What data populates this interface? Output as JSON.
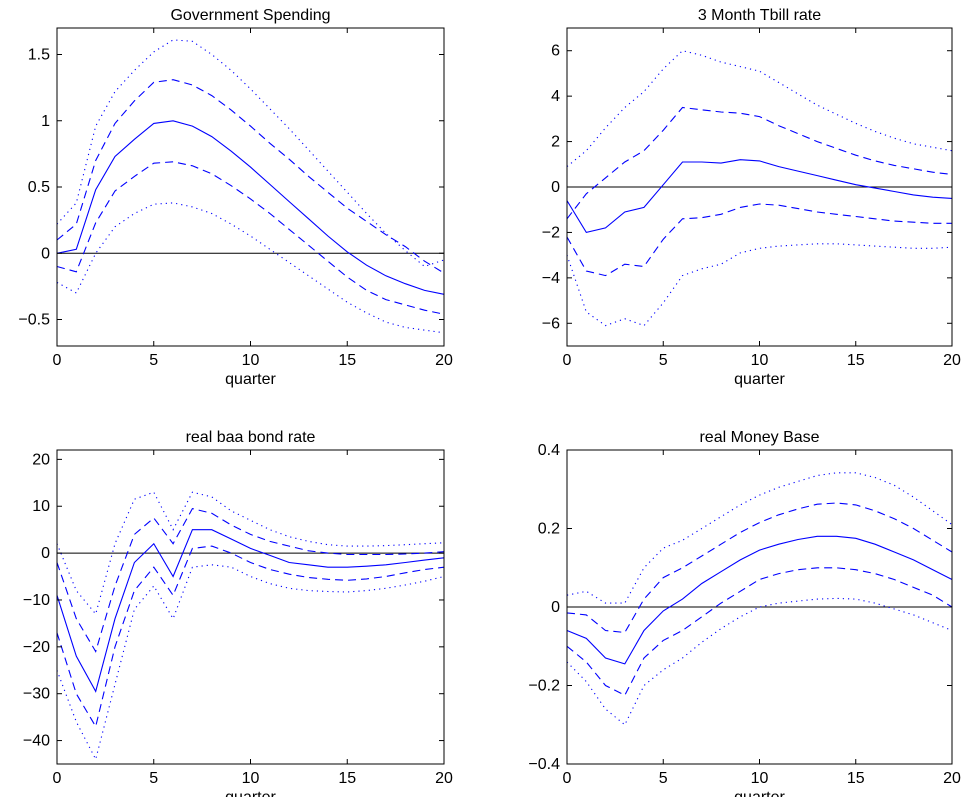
{
  "chart_data": [
    {
      "type": "line",
      "title": "Government Spending",
      "xlabel": "quarter",
      "ylabel": "",
      "xlim": [
        0,
        20
      ],
      "ylim": [
        -0.7,
        1.7
      ],
      "xticks": [
        "0",
        "5",
        "10",
        "15",
        "20"
      ],
      "yticks": [
        "−0.5",
        "0",
        "0.5",
        "1",
        "1.5"
      ],
      "ytick_values": [
        -0.5,
        0,
        0.5,
        1,
        1.5
      ],
      "zero_line": true,
      "x": [
        0,
        1,
        2,
        3,
        4,
        5,
        6,
        7,
        8,
        9,
        10,
        11,
        12,
        13,
        14,
        15,
        16,
        17,
        18,
        19,
        20
      ],
      "series": [
        {
          "style": "solid",
          "values": [
            0,
            0.03,
            0.48,
            0.73,
            0.86,
            0.98,
            1.0,
            0.96,
            0.88,
            0.77,
            0.65,
            0.52,
            0.39,
            0.26,
            0.13,
            0.01,
            -0.09,
            -0.17,
            -0.23,
            -0.28,
            -0.31
          ]
        },
        {
          "style": "dashed",
          "values": [
            0.1,
            0.22,
            0.7,
            0.98,
            1.15,
            1.29,
            1.31,
            1.27,
            1.19,
            1.08,
            0.96,
            0.83,
            0.71,
            0.58,
            0.46,
            0.34,
            0.24,
            0.14,
            0.05,
            -0.06,
            -0.15
          ]
        },
        {
          "style": "dashed",
          "values": [
            -0.1,
            -0.14,
            0.23,
            0.47,
            0.58,
            0.68,
            0.69,
            0.66,
            0.6,
            0.51,
            0.41,
            0.3,
            0.18,
            0.06,
            -0.06,
            -0.18,
            -0.28,
            -0.35,
            -0.39,
            -0.43,
            -0.46
          ]
        },
        {
          "style": "dotted",
          "values": [
            0.22,
            0.38,
            0.96,
            1.22,
            1.38,
            1.52,
            1.61,
            1.6,
            1.5,
            1.38,
            1.24,
            1.09,
            0.94,
            0.78,
            0.62,
            0.46,
            0.3,
            0.15,
            0.02,
            -0.1,
            -0.05
          ]
        },
        {
          "style": "dotted",
          "values": [
            -0.22,
            -0.3,
            0.0,
            0.2,
            0.3,
            0.37,
            0.38,
            0.35,
            0.3,
            0.22,
            0.13,
            0.03,
            -0.07,
            -0.17,
            -0.27,
            -0.37,
            -0.45,
            -0.52,
            -0.56,
            -0.58,
            -0.6
          ]
        }
      ]
    },
    {
      "type": "line",
      "title": "3 Month Tbill rate",
      "xlabel": "quarter",
      "ylabel": "",
      "xlim": [
        0,
        20
      ],
      "ylim": [
        -7,
        7
      ],
      "xticks": [
        "0",
        "5",
        "10",
        "15",
        "20"
      ],
      "yticks": [
        "−6",
        "−4",
        "−2",
        "0",
        "2",
        "4",
        "6"
      ],
      "ytick_values": [
        -6,
        -4,
        -2,
        0,
        2,
        4,
        6
      ],
      "zero_line": true,
      "x": [
        0,
        1,
        2,
        3,
        4,
        5,
        6,
        7,
        8,
        9,
        10,
        11,
        12,
        13,
        14,
        15,
        16,
        17,
        18,
        19,
        20
      ],
      "series": [
        {
          "style": "solid",
          "values": [
            -0.6,
            -2.0,
            -1.8,
            -1.1,
            -0.9,
            0.1,
            1.1,
            1.1,
            1.05,
            1.2,
            1.15,
            0.9,
            0.7,
            0.5,
            0.3,
            0.1,
            -0.05,
            -0.2,
            -0.35,
            -0.45,
            -0.5
          ]
        },
        {
          "style": "dashed",
          "values": [
            -1.4,
            -0.3,
            0.4,
            1.1,
            1.6,
            2.5,
            3.5,
            3.4,
            3.3,
            3.25,
            3.1,
            2.7,
            2.35,
            2.0,
            1.7,
            1.4,
            1.15,
            0.95,
            0.8,
            0.65,
            0.55
          ]
        },
        {
          "style": "dashed",
          "values": [
            -2.2,
            -3.7,
            -3.9,
            -3.4,
            -3.5,
            -2.3,
            -1.4,
            -1.35,
            -1.2,
            -0.9,
            -0.75,
            -0.8,
            -0.95,
            -1.1,
            -1.2,
            -1.3,
            -1.4,
            -1.5,
            -1.55,
            -1.6,
            -1.6
          ]
        },
        {
          "style": "dotted",
          "values": [
            0.9,
            1.6,
            2.6,
            3.5,
            4.2,
            5.2,
            6.0,
            5.8,
            5.5,
            5.3,
            5.1,
            4.6,
            4.1,
            3.6,
            3.2,
            2.8,
            2.45,
            2.15,
            1.9,
            1.75,
            1.6
          ]
        },
        {
          "style": "dotted",
          "values": [
            -3.0,
            -5.5,
            -6.1,
            -5.8,
            -6.1,
            -5.1,
            -3.9,
            -3.6,
            -3.4,
            -2.9,
            -2.7,
            -2.6,
            -2.55,
            -2.5,
            -2.5,
            -2.55,
            -2.6,
            -2.65,
            -2.7,
            -2.7,
            -2.65
          ]
        }
      ]
    },
    {
      "type": "line",
      "title": "real baa bond rate",
      "xlabel": "quarter",
      "ylabel": "",
      "xlim": [
        0,
        20
      ],
      "ylim": [
        -45,
        22
      ],
      "xticks": [
        "0",
        "5",
        "10",
        "15",
        "20"
      ],
      "yticks": [
        "−40",
        "−30",
        "−20",
        "−10",
        "0",
        "10",
        "20"
      ],
      "ytick_values": [
        -40,
        -30,
        -20,
        -10,
        0,
        10,
        20
      ],
      "zero_line": true,
      "x": [
        0,
        1,
        2,
        3,
        4,
        5,
        6,
        7,
        8,
        9,
        10,
        11,
        12,
        13,
        14,
        15,
        16,
        17,
        18,
        19,
        20
      ],
      "series": [
        {
          "style": "solid",
          "values": [
            -9,
            -22,
            -29.5,
            -14,
            -2,
            2,
            -5,
            5,
            5,
            3,
            1,
            -0.5,
            -2,
            -2.5,
            -3,
            -3,
            -2.8,
            -2.5,
            -2,
            -1.5,
            -1
          ]
        },
        {
          "style": "dashed",
          "values": [
            -2,
            -14,
            -21,
            -7,
            4,
            7.5,
            2,
            9.5,
            8.5,
            6,
            4,
            2.5,
            1.5,
            0.5,
            0,
            -0.3,
            -0.3,
            -0.3,
            -0.2,
            0,
            0.3
          ]
        },
        {
          "style": "dashed",
          "values": [
            -17,
            -30,
            -37,
            -20,
            -8,
            -3,
            -9,
            1,
            1.5,
            0,
            -2,
            -3.5,
            -4.5,
            -5.2,
            -5.6,
            -5.8,
            -5.5,
            -5,
            -4.2,
            -3.5,
            -3
          ]
        },
        {
          "style": "dotted",
          "values": [
            2,
            -8,
            -13,
            2,
            11.5,
            13,
            5,
            13,
            12,
            9,
            7,
            5,
            3.5,
            2.5,
            1.8,
            1.5,
            1.5,
            1.6,
            1.8,
            2,
            2.2
          ]
        },
        {
          "style": "dotted",
          "values": [
            -25,
            -36,
            -44,
            -28,
            -12,
            -7,
            -14,
            -3,
            -2.5,
            -3,
            -5,
            -6.5,
            -7.5,
            -8,
            -8.2,
            -8.3,
            -8,
            -7.5,
            -6.8,
            -6,
            -5
          ]
        }
      ]
    },
    {
      "type": "line",
      "title": "real Money Base",
      "xlabel": "quarter",
      "ylabel": "",
      "xlim": [
        0,
        20
      ],
      "ylim": [
        -0.4,
        0.4
      ],
      "xticks": [
        "0",
        "5",
        "10",
        "15",
        "20"
      ],
      "yticks": [
        "−0.4",
        "−0.2",
        "0",
        "0.2",
        "0.4"
      ],
      "ytick_values": [
        -0.4,
        -0.2,
        0,
        0.2,
        0.4
      ],
      "zero_line": true,
      "x": [
        0,
        1,
        2,
        3,
        4,
        5,
        6,
        7,
        8,
        9,
        10,
        11,
        12,
        13,
        14,
        15,
        16,
        17,
        18,
        19,
        20
      ],
      "series": [
        {
          "style": "solid",
          "values": [
            -0.06,
            -0.08,
            -0.13,
            -0.145,
            -0.06,
            -0.01,
            0.02,
            0.06,
            0.09,
            0.12,
            0.145,
            0.16,
            0.172,
            0.18,
            0.18,
            0.175,
            0.16,
            0.14,
            0.12,
            0.095,
            0.07
          ]
        },
        {
          "style": "dashed",
          "values": [
            -0.015,
            -0.02,
            -0.06,
            -0.065,
            0.02,
            0.075,
            0.1,
            0.13,
            0.16,
            0.19,
            0.215,
            0.235,
            0.25,
            0.262,
            0.265,
            0.26,
            0.245,
            0.225,
            0.2,
            0.17,
            0.14
          ]
        },
        {
          "style": "dashed",
          "values": [
            -0.1,
            -0.14,
            -0.2,
            -0.225,
            -0.13,
            -0.085,
            -0.06,
            -0.025,
            0.01,
            0.04,
            0.07,
            0.085,
            0.095,
            0.1,
            0.1,
            0.095,
            0.085,
            0.07,
            0.05,
            0.03,
            0.0
          ]
        },
        {
          "style": "dotted",
          "values": [
            0.03,
            0.04,
            0.01,
            0.01,
            0.1,
            0.15,
            0.17,
            0.2,
            0.23,
            0.26,
            0.285,
            0.305,
            0.32,
            0.335,
            0.342,
            0.342,
            0.33,
            0.31,
            0.28,
            0.245,
            0.21
          ]
        },
        {
          "style": "dotted",
          "values": [
            -0.14,
            -0.19,
            -0.26,
            -0.3,
            -0.2,
            -0.16,
            -0.13,
            -0.09,
            -0.055,
            -0.025,
            0.0,
            0.01,
            0.015,
            0.02,
            0.022,
            0.02,
            0.01,
            -0.005,
            -0.02,
            -0.04,
            -0.06
          ]
        }
      ]
    }
  ],
  "colors": {
    "line": "#0000ff",
    "zero_line": "#000000",
    "axes": "#000000"
  }
}
